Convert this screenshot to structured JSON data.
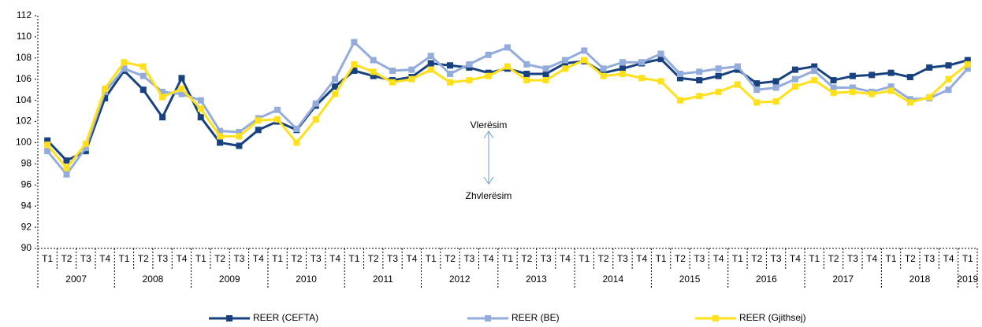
{
  "chart_data": {
    "type": "line",
    "categories": [
      "T1",
      "T2",
      "T3",
      "T4",
      "T1",
      "T2",
      "T3",
      "T4",
      "T1",
      "T2",
      "T3",
      "T4",
      "T1",
      "T2",
      "T3",
      "T4",
      "T1",
      "T2",
      "T3",
      "T4",
      "T1",
      "T2",
      "T3",
      "T4",
      "T1",
      "T2",
      "T3",
      "T4",
      "T1",
      "T2",
      "T3",
      "T4",
      "T1",
      "T2",
      "T3",
      "T4",
      "T1",
      "T2",
      "T3",
      "T4",
      "T1",
      "T2",
      "T3",
      "T4",
      "T1",
      "T2",
      "T3",
      "T4",
      "T1"
    ],
    "years": [
      "2007",
      "2008",
      "2009",
      "2010",
      "2011",
      "2012",
      "2013",
      "2014",
      "2015",
      "2016",
      "2017",
      "2018",
      "2019"
    ],
    "series": [
      {
        "name": "REER (CEFTA)",
        "color": "#17427f",
        "values": [
          100.2,
          98.3,
          99.2,
          104.2,
          106.8,
          105.0,
          102.4,
          106.1,
          102.4,
          100.0,
          99.7,
          101.2,
          102.0,
          101.2,
          103.5,
          105.3,
          106.8,
          106.3,
          105.9,
          106.2,
          107.5,
          107.3,
          107.1,
          106.6,
          107.0,
          106.5,
          106.5,
          107.5,
          107.7,
          106.6,
          107.0,
          107.5,
          107.9,
          106.1,
          105.9,
          106.3,
          106.9,
          105.6,
          105.8,
          106.9,
          107.2,
          105.9,
          106.3,
          106.4,
          106.6,
          106.2,
          107.1,
          107.3,
          107.8
        ]
      },
      {
        "name": "REER (BE)",
        "color": "#94acdc",
        "values": [
          99.2,
          97.0,
          99.5,
          104.8,
          107.0,
          106.3,
          104.8,
          104.6,
          104.0,
          101.1,
          101.0,
          102.3,
          103.1,
          101.3,
          103.7,
          106.0,
          109.5,
          107.8,
          106.8,
          106.9,
          108.2,
          106.5,
          107.4,
          108.3,
          109.0,
          107.4,
          107.0,
          107.8,
          108.7,
          107.0,
          107.6,
          107.6,
          108.4,
          106.5,
          106.7,
          107.0,
          107.2,
          105.0,
          105.2,
          106.0,
          106.8,
          105.2,
          105.2,
          104.8,
          105.3,
          104.1,
          104.2,
          105.0,
          107.0
        ]
      },
      {
        "name": "REER (Gjithsej)",
        "color": "#ffe01a",
        "values": [
          99.8,
          97.6,
          99.9,
          105.1,
          107.6,
          107.2,
          104.3,
          105.1,
          103.2,
          100.6,
          100.6,
          102.1,
          102.2,
          100.0,
          102.2,
          104.6,
          107.4,
          106.7,
          105.7,
          106.0,
          106.9,
          105.7,
          105.9,
          106.3,
          107.2,
          105.9,
          105.9,
          107.0,
          107.8,
          106.3,
          106.5,
          106.1,
          105.8,
          104.0,
          104.4,
          104.8,
          105.5,
          103.8,
          103.9,
          105.3,
          105.9,
          104.7,
          104.8,
          104.6,
          104.9,
          103.8,
          104.3,
          106.0,
          107.4
        ]
      }
    ],
    "annotations": [
      "Vlerësim",
      "Zhvlerësim"
    ],
    "ylim": [
      90,
      112
    ],
    "yticks": [
      90,
      92,
      94,
      96,
      98,
      100,
      102,
      104,
      106,
      108,
      110,
      112
    ],
    "grid": false
  }
}
